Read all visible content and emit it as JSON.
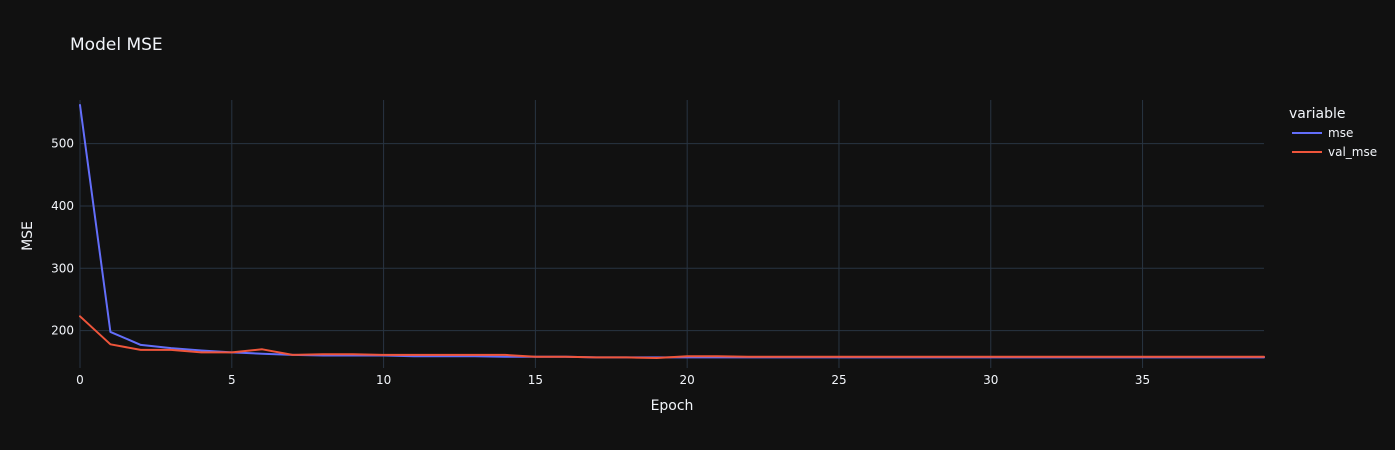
{
  "chart_data": {
    "type": "line",
    "title": "Model MSE",
    "xlabel": "Epoch",
    "ylabel": "MSE",
    "xlim": [
      0,
      39
    ],
    "ylim": [
      140,
      570
    ],
    "xticks": [
      0,
      5,
      10,
      15,
      20,
      25,
      30,
      35
    ],
    "yticks": [
      200,
      300,
      400,
      500
    ],
    "grid": true,
    "legend": {
      "title": "variable",
      "placement": "right"
    },
    "x": [
      0,
      1,
      2,
      3,
      4,
      5,
      6,
      7,
      8,
      9,
      10,
      11,
      12,
      13,
      14,
      15,
      16,
      17,
      18,
      19,
      20,
      21,
      22,
      23,
      24,
      25,
      26,
      27,
      28,
      29,
      30,
      31,
      32,
      33,
      34,
      35,
      36,
      37,
      38,
      39
    ],
    "series": [
      {
        "name": "mse",
        "color": "#636efa",
        "values": [
          562,
          198,
          177,
          172,
          168,
          165,
          163,
          161,
          160,
          160,
          160,
          159,
          159,
          159,
          158,
          158,
          158,
          157,
          157,
          157,
          157,
          157,
          157,
          157,
          157,
          157,
          157,
          157,
          157,
          157,
          157,
          157,
          157,
          157,
          157,
          157,
          157,
          157,
          157,
          157
        ]
      },
      {
        "name": "val_mse",
        "color": "#ef553b",
        "values": [
          223,
          178,
          169,
          169,
          165,
          165,
          170,
          161,
          162,
          162,
          161,
          161,
          161,
          161,
          161,
          158,
          158,
          157,
          157,
          156,
          159,
          159,
          158,
          158,
          158,
          158,
          158,
          158,
          158,
          158,
          158,
          158,
          158,
          158,
          158,
          158,
          158,
          158,
          158,
          158
        ]
      }
    ]
  }
}
